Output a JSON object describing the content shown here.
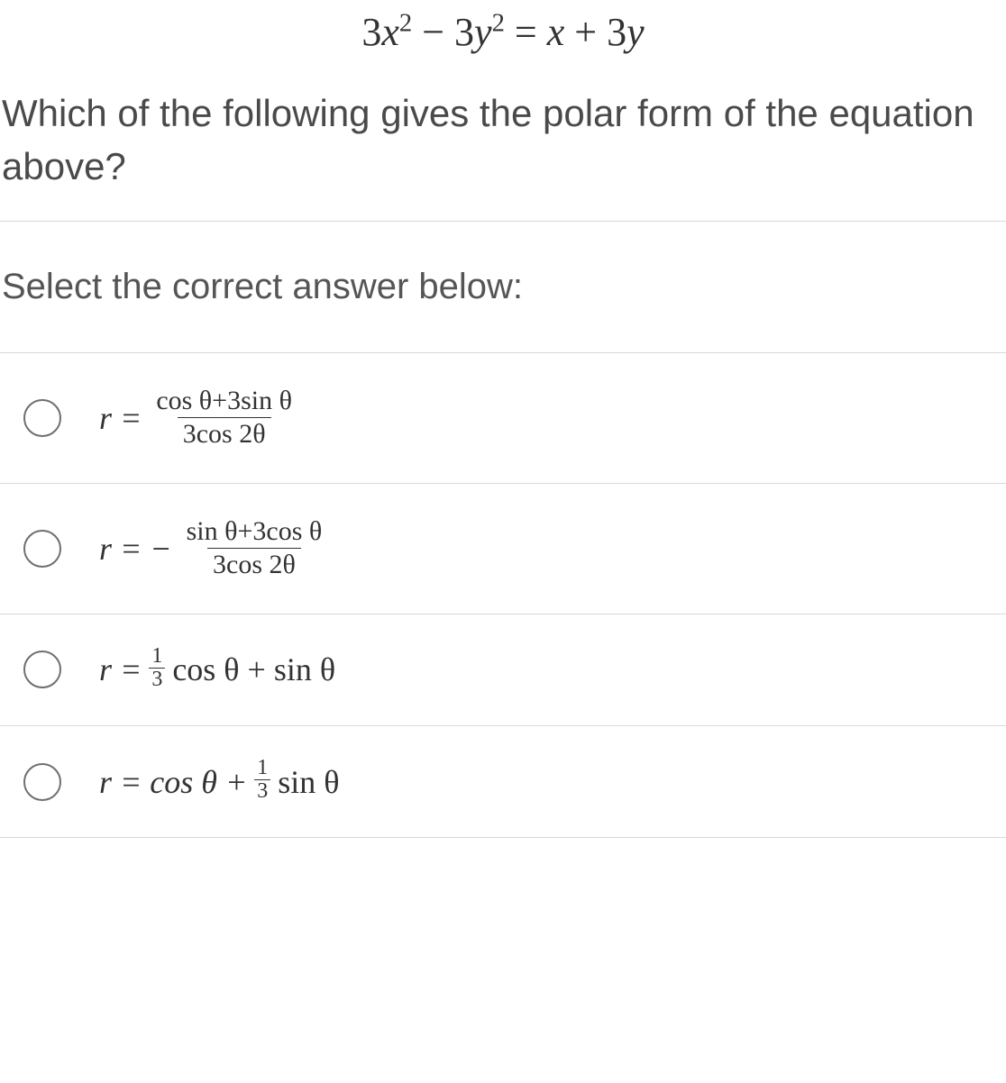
{
  "equation": {
    "lhs_a": "3",
    "lhs_x": "x",
    "lhs_exp": "2",
    "minus": " − ",
    "lhs_b": "3",
    "lhs_y": "y",
    "eq": " = ",
    "rhs_x": "x",
    "plus": " + ",
    "rhs_b": "3",
    "rhs_y": "y"
  },
  "question": "Which of the following gives the polar form of the equation above?",
  "prompt": "Select the correct answer below:",
  "options": {
    "a": {
      "lead": "r =",
      "num": "cos θ+3sin θ",
      "den": "3cos 2θ"
    },
    "b": {
      "lead": "r = −",
      "num": "sin θ+3cos θ",
      "den": "3cos 2θ"
    },
    "c": {
      "lead": "r =",
      "frac_num": "1",
      "frac_den": "3",
      "mid": "cos θ + sin θ"
    },
    "d": {
      "lead": "r = cos θ +",
      "frac_num": "1",
      "frac_den": "3",
      "tail": "sin θ"
    }
  }
}
